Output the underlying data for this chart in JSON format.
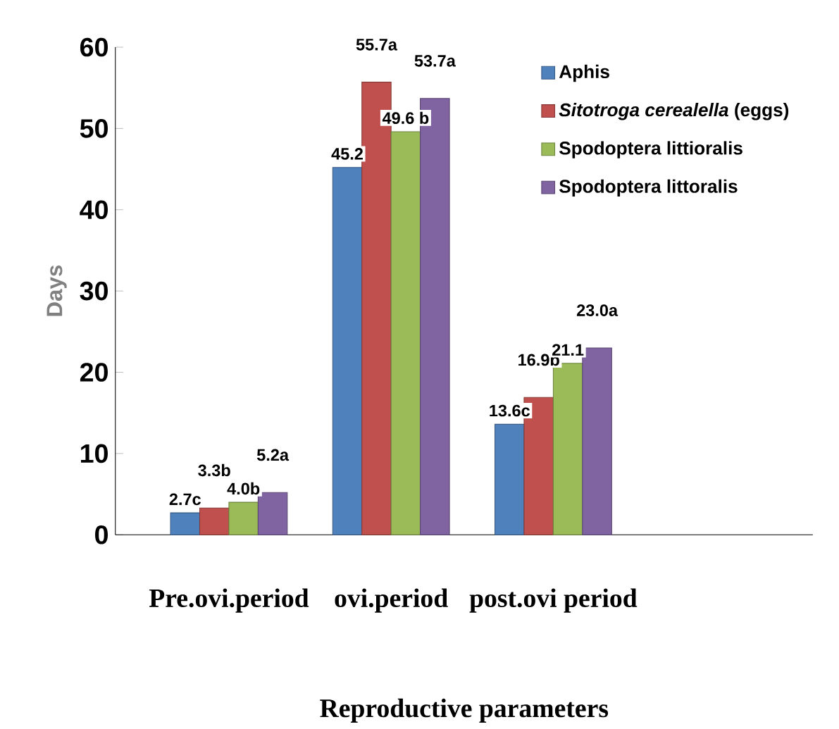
{
  "chart_data": {
    "type": "bar",
    "ylabel": "Days",
    "xlabel": "Reproductive parameters",
    "categories": [
      "Pre.ovi.period",
      "ovi.period",
      "post.ovi period"
    ],
    "series": [
      {
        "name": "Aphis",
        "color": "#4f81bd",
        "values": [
          2.7,
          45.2,
          13.6
        ],
        "value_labels": [
          "2.7c",
          "45.2",
          "13.6c"
        ]
      },
      {
        "name": "*Sitotroga cerealella* (eggs)",
        "color": "#c0504d",
        "values": [
          3.3,
          55.7,
          16.9
        ],
        "value_labels": [
          "3.3b",
          "55.7a",
          "16.9b"
        ]
      },
      {
        "name": "Spodoptera littioralis",
        "color": "#9bbb59",
        "values": [
          4.0,
          49.6,
          21.1
        ],
        "value_labels": [
          "4.0b",
          "49.6 b",
          "21.1"
        ]
      },
      {
        "name": "Spodoptera littoralis",
        "color": "#8064a2",
        "values": [
          5.2,
          53.7,
          23.0
        ],
        "value_labels": [
          "5.2a",
          "53.7a",
          "23.0a"
        ]
      }
    ],
    "ylim": [
      0,
      60
    ],
    "yticks": [
      0,
      10,
      20,
      30,
      40,
      50,
      60
    ],
    "grid": false,
    "legend": "top right"
  }
}
